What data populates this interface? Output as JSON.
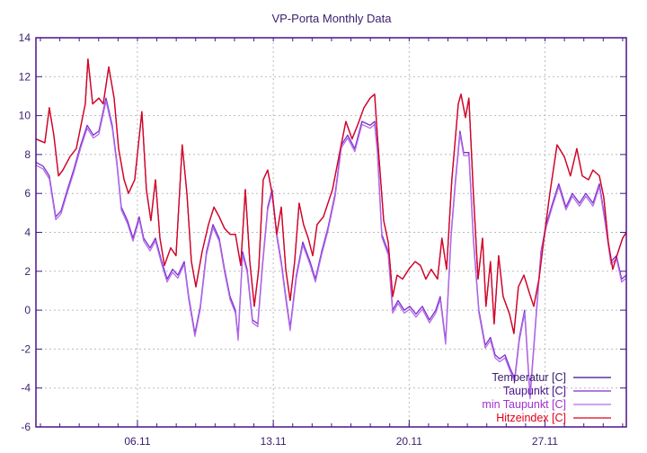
{
  "chart_data": {
    "type": "line",
    "title": "VP-Porta Monthly Data",
    "xlabel": "",
    "ylabel": "",
    "xlim": [
      0.77,
      31.19
    ],
    "ylim": [
      -6,
      14
    ],
    "y_ticks": [
      -6,
      -4,
      -2,
      0,
      2,
      4,
      6,
      8,
      10,
      12,
      14
    ],
    "x_ticks": [
      {
        "value": 6,
        "label": "06.11"
      },
      {
        "value": 13,
        "label": "13.11"
      },
      {
        "value": 20,
        "label": "20.11"
      },
      {
        "value": 27,
        "label": "27.11"
      }
    ],
    "x_unit": "day of November",
    "grid": true,
    "legend_position": "bottom-right",
    "series": [
      {
        "name": "Temperatur [C]",
        "color": "#3c0c8c",
        "ref": "hitze"
      },
      {
        "name": "Taupunkt [C]",
        "color": "#7a2ed0",
        "ref": "tau"
      },
      {
        "name": "min Taupunkt [C]",
        "color": "#b36ae8",
        "ref": "tau",
        "offset": -0.15
      },
      {
        "name": "Hitzeindex [C]",
        "color": "#e0001c",
        "ref": "hitze"
      }
    ],
    "data": {
      "hitze": {
        "x": [
          0.77,
          1.23,
          1.46,
          1.69,
          1.93,
          2.16,
          2.53,
          2.85,
          3.31,
          3.45,
          3.69,
          4.01,
          4.24,
          4.52,
          4.8,
          5.03,
          5.31,
          5.54,
          5.86,
          6.23,
          6.46,
          6.69,
          6.93,
          7.16,
          7.39,
          7.71,
          7.99,
          8.31,
          8.55,
          8.78,
          9.01,
          9.33,
          9.66,
          9.94,
          10.21,
          10.49,
          10.77,
          11.05,
          11.32,
          11.56,
          11.79,
          12.02,
          12.25,
          12.48,
          12.71,
          12.94,
          13.18,
          13.41,
          13.64,
          13.87,
          14.1,
          14.33,
          14.56,
          14.8,
          15.03,
          15.26,
          15.58,
          16.05,
          16.42,
          16.74,
          17.06,
          17.34,
          17.67,
          17.99,
          18.22,
          18.36,
          18.69,
          18.92,
          19.15,
          19.38,
          19.66,
          19.98,
          20.31,
          20.58,
          20.86,
          21.14,
          21.46,
          21.69,
          21.93,
          22.2,
          22.53,
          22.67,
          22.9,
          23.08,
          23.31,
          23.55,
          23.78,
          23.96,
          24.19,
          24.38,
          24.61,
          24.84,
          25.17,
          25.4,
          25.63,
          25.91,
          26.19,
          26.42,
          26.69,
          26.97,
          27.25,
          27.62,
          27.99,
          28.31,
          28.64,
          28.92,
          29.24,
          29.47,
          29.8,
          30.03,
          30.26,
          30.49,
          30.77,
          31.0,
          31.19
        ],
        "y": [
          8.8,
          8.6,
          10.4,
          9.0,
          6.9,
          7.2,
          7.9,
          8.3,
          10.6,
          12.9,
          10.6,
          10.9,
          10.6,
          12.5,
          10.9,
          8.3,
          6.7,
          6.0,
          6.7,
          10.2,
          6.2,
          4.6,
          6.7,
          3.7,
          2.3,
          3.2,
          2.8,
          8.5,
          6.0,
          2.5,
          1.2,
          3.0,
          4.4,
          5.3,
          4.8,
          4.2,
          3.9,
          3.9,
          2.3,
          6.2,
          2.5,
          0.2,
          2.1,
          6.7,
          7.2,
          6.0,
          3.9,
          5.3,
          2.1,
          0.5,
          2.5,
          5.5,
          4.4,
          3.7,
          2.8,
          4.4,
          4.8,
          6.2,
          8.1,
          9.7,
          8.8,
          9.5,
          10.4,
          10.9,
          11.1,
          9.0,
          4.6,
          3.5,
          0.7,
          1.8,
          1.6,
          2.1,
          2.5,
          2.3,
          1.6,
          2.1,
          1.6,
          3.7,
          2.1,
          6.7,
          10.6,
          11.1,
          9.9,
          10.9,
          6.0,
          1.6,
          3.7,
          0.2,
          2.5,
          -0.7,
          2.8,
          0.7,
          -0.2,
          -1.2,
          1.2,
          1.8,
          0.9,
          0.2,
          1.6,
          3.9,
          6.0,
          8.5,
          7.9,
          6.9,
          8.3,
          6.9,
          6.7,
          7.2,
          6.9,
          5.8,
          3.5,
          2.1,
          3.0,
          3.7,
          4.0
        ]
      },
      "tau": {
        "x": [
          0.77,
          1.14,
          1.46,
          1.79,
          2.06,
          2.39,
          2.71,
          3.08,
          3.41,
          3.73,
          4.01,
          4.38,
          4.7,
          4.94,
          5.17,
          5.49,
          5.77,
          6.09,
          6.32,
          6.65,
          6.93,
          7.25,
          7.53,
          7.81,
          8.08,
          8.41,
          8.64,
          8.96,
          9.24,
          9.56,
          9.89,
          10.21,
          10.49,
          10.77,
          11.05,
          11.19,
          11.42,
          11.65,
          11.93,
          12.2,
          12.44,
          12.71,
          12.94,
          13.18,
          13.41,
          13.64,
          13.87,
          14.19,
          14.52,
          14.89,
          15.17,
          15.49,
          15.81,
          16.19,
          16.51,
          16.83,
          17.2,
          17.57,
          17.99,
          18.22,
          18.36,
          18.59,
          18.92,
          19.15,
          19.43,
          19.75,
          20.03,
          20.35,
          20.68,
          21.05,
          21.37,
          21.6,
          21.88,
          22.16,
          22.39,
          22.62,
          22.81,
          23.08,
          23.31,
          23.59,
          23.92,
          24.19,
          24.43,
          24.66,
          24.94,
          25.21,
          25.44,
          25.68,
          25.95,
          26.23,
          26.51,
          26.79,
          27.06,
          27.39,
          27.71,
          28.08,
          28.41,
          28.78,
          29.1,
          29.47,
          29.8,
          30.07,
          30.4,
          30.68,
          30.95,
          31.19
        ],
        "y": [
          7.6,
          7.4,
          6.9,
          4.8,
          5.1,
          6.2,
          7.2,
          8.5,
          9.5,
          9.0,
          9.2,
          10.9,
          9.5,
          7.6,
          5.3,
          4.6,
          3.7,
          4.8,
          3.7,
          3.2,
          3.7,
          2.5,
          1.6,
          2.1,
          1.8,
          2.5,
          0.7,
          -1.2,
          0.2,
          3.0,
          4.4,
          3.7,
          2.1,
          0.7,
          0.0,
          -1.4,
          3.0,
          2.1,
          -0.5,
          -0.7,
          2.3,
          5.3,
          6.2,
          3.9,
          2.5,
          0.7,
          -0.9,
          1.8,
          3.5,
          2.5,
          1.6,
          3.0,
          4.2,
          6.0,
          8.5,
          9.0,
          8.3,
          9.7,
          9.5,
          9.7,
          8.3,
          3.9,
          3.0,
          0.0,
          0.5,
          0.0,
          0.2,
          -0.2,
          0.2,
          -0.5,
          0.0,
          0.7,
          -1.6,
          3.9,
          6.7,
          9.2,
          8.1,
          8.1,
          3.7,
          0.0,
          -1.8,
          -1.4,
          -2.3,
          -2.5,
          -2.3,
          -3.0,
          -3.5,
          -1.4,
          0.0,
          -4.4,
          -0.7,
          3.0,
          4.4,
          5.5,
          6.5,
          5.3,
          6.0,
          5.5,
          6.0,
          5.5,
          6.5,
          4.8,
          2.5,
          2.8,
          1.6,
          1.8
        ]
      }
    }
  }
}
